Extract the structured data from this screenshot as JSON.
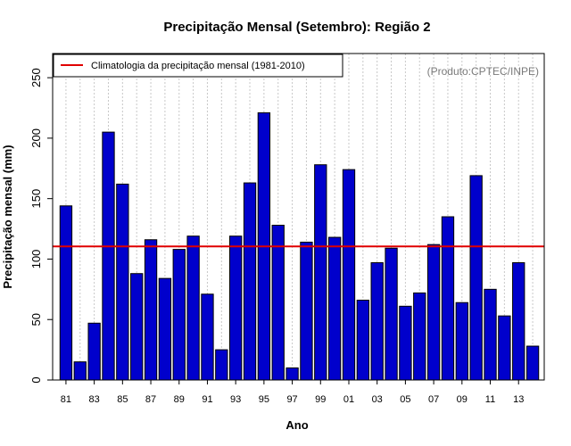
{
  "chart_data": {
    "type": "bar",
    "title": "Precipitação Mensal (Setembro): Região 2",
    "xlabel": "Ano",
    "ylabel": "Precipitação mensal (mm)",
    "ylim": [
      0,
      270
    ],
    "yticks": [
      0,
      50,
      100,
      150,
      200,
      250
    ],
    "grid": "vertical dotted",
    "categories": [
      "81",
      "82",
      "83",
      "84",
      "85",
      "86",
      "87",
      "88",
      "89",
      "90",
      "91",
      "92",
      "93",
      "94",
      "95",
      "96",
      "97",
      "98",
      "99",
      "00",
      "01",
      "02",
      "03",
      "04",
      "05",
      "06",
      "07",
      "08",
      "09",
      "10",
      "11",
      "12",
      "13",
      "14"
    ],
    "tick_labels": [
      "81",
      "83",
      "85",
      "87",
      "89",
      "91",
      "93",
      "95",
      "97",
      "99",
      "01",
      "03",
      "05",
      "07",
      "09",
      "11",
      "13"
    ],
    "series": [
      {
        "name": "Precipitação mensal",
        "color": "#0000cc",
        "values": [
          144,
          15,
          47,
          205,
          162,
          88,
          116,
          84,
          108,
          119,
          71,
          25,
          119,
          163,
          221,
          128,
          10,
          114,
          178,
          118,
          174,
          66,
          97,
          109,
          61,
          72,
          112,
          135,
          64,
          169,
          75,
          53,
          97,
          28
        ]
      }
    ],
    "reference_line": {
      "label": "Climatologia da precipitação mensal (1981-2010)",
      "value": 110.5,
      "color": "#e00000"
    },
    "legend_position": "top-left",
    "annotation": "(Produto:CPTEC/INPE)"
  }
}
